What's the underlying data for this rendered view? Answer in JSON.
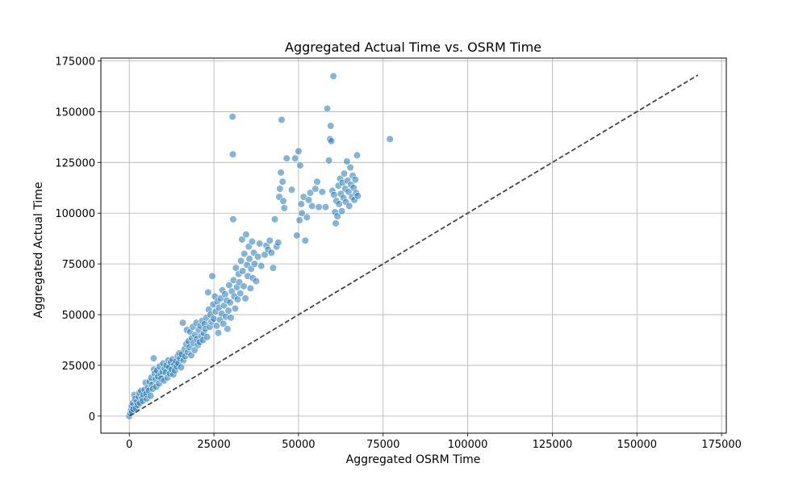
{
  "chart_data": {
    "type": "scatter",
    "title": "Aggregated Actual Time vs. OSRM Time",
    "xlabel": "Aggregated OSRM Time",
    "ylabel": "Aggregated Actual Time",
    "xlim": [
      -8400,
      176400
    ],
    "ylim": [
      -8400,
      176400
    ],
    "xticks": [
      0,
      25000,
      50000,
      75000,
      100000,
      125000,
      150000,
      175000
    ],
    "yticks": [
      0,
      25000,
      50000,
      75000,
      100000,
      125000,
      150000,
      175000
    ],
    "xtick_labels": [
      "0",
      "25000",
      "50000",
      "75000",
      "100000",
      "125000",
      "150000",
      "175000"
    ],
    "ytick_labels": [
      "0",
      "25000",
      "50000",
      "75000",
      "100000",
      "125000",
      "150000",
      "175000"
    ],
    "grid": true,
    "point_color": "#1f77b4",
    "reference_line": {
      "style": "dashed",
      "color": "#444444",
      "x": [
        0,
        168000
      ],
      "y": [
        0,
        168000
      ]
    },
    "points": [
      [
        0,
        0
      ],
      [
        300,
        1500
      ],
      [
        500,
        3000
      ],
      [
        700,
        5000
      ],
      [
        800,
        2000
      ],
      [
        1000,
        6500
      ],
      [
        1200,
        3500
      ],
      [
        1500,
        10500
      ],
      [
        1700,
        8500
      ],
      [
        2000,
        4000
      ],
      [
        2200,
        7000
      ],
      [
        2500,
        5500
      ],
      [
        2800,
        9500
      ],
      [
        3000,
        11500
      ],
      [
        3200,
        6500
      ],
      [
        3500,
        12500
      ],
      [
        3800,
        9000
      ],
      [
        4000,
        7500
      ],
      [
        4200,
        10500
      ],
      [
        4500,
        13000
      ],
      [
        4800,
        16500
      ],
      [
        5000,
        11000
      ],
      [
        5200,
        8500
      ],
      [
        5500,
        14000
      ],
      [
        5800,
        12500
      ],
      [
        6000,
        17000
      ],
      [
        6300,
        10000
      ],
      [
        6500,
        19000
      ],
      [
        6800,
        15500
      ],
      [
        7000,
        13500
      ],
      [
        7200,
        28500
      ],
      [
        7300,
        23000
      ],
      [
        7500,
        21000
      ],
      [
        7800,
        18000
      ],
      [
        8000,
        14500
      ],
      [
        8200,
        22500
      ],
      [
        8500,
        19500
      ],
      [
        8800,
        16000
      ],
      [
        9000,
        24500
      ],
      [
        9300,
        20500
      ],
      [
        9500,
        18500
      ],
      [
        9800,
        22000
      ],
      [
        10000,
        26000
      ],
      [
        10300,
        17500
      ],
      [
        10500,
        23500
      ],
      [
        10800,
        21500
      ],
      [
        11000,
        25000
      ],
      [
        11300,
        19000
      ],
      [
        11500,
        27500
      ],
      [
        11800,
        24000
      ],
      [
        12000,
        21000
      ],
      [
        12300,
        26500
      ],
      [
        12500,
        23000
      ],
      [
        12800,
        28000
      ],
      [
        13000,
        20500
      ],
      [
        13300,
        25500
      ],
      [
        13500,
        22500
      ],
      [
        13800,
        27000
      ],
      [
        14000,
        24500
      ],
      [
        14300,
        29500
      ],
      [
        14500,
        26000
      ],
      [
        14800,
        31000
      ],
      [
        15000,
        28500
      ],
      [
        15300,
        24000
      ],
      [
        15500,
        30500
      ],
      [
        15800,
        46000
      ],
      [
        16000,
        27500
      ],
      [
        16300,
        33000
      ],
      [
        16500,
        29500
      ],
      [
        16800,
        35500
      ],
      [
        17000,
        42500
      ],
      [
        17300,
        31500
      ],
      [
        17500,
        37000
      ],
      [
        17800,
        34000
      ],
      [
        18000,
        41500
      ],
      [
        18300,
        30000
      ],
      [
        18500,
        38500
      ],
      [
        18800,
        44000
      ],
      [
        19000,
        36000
      ],
      [
        19300,
        32500
      ],
      [
        19500,
        40000
      ],
      [
        19800,
        46000
      ],
      [
        20000,
        38000
      ],
      [
        20300,
        35000
      ],
      [
        20500,
        42500
      ],
      [
        20800,
        36500
      ],
      [
        21000,
        44500
      ],
      [
        21300,
        39500
      ],
      [
        21500,
        47000
      ],
      [
        21800,
        37500
      ],
      [
        22000,
        41000
      ],
      [
        22300,
        45500
      ],
      [
        22500,
        43000
      ],
      [
        22800,
        48500
      ],
      [
        23000,
        39000
      ],
      [
        23300,
        61000
      ],
      [
        23500,
        52500
      ],
      [
        23800,
        44000
      ],
      [
        24000,
        50000
      ],
      [
        24300,
        46500
      ],
      [
        24500,
        69000
      ],
      [
        24800,
        55000
      ],
      [
        25000,
        48000
      ],
      [
        25300,
        59000
      ],
      [
        25500,
        51500
      ],
      [
        25800,
        44500
      ],
      [
        26000,
        56500
      ],
      [
        26300,
        41000
      ],
      [
        26500,
        53500
      ],
      [
        26800,
        47500
      ],
      [
        27000,
        58000
      ],
      [
        27300,
        50500
      ],
      [
        27500,
        62000
      ],
      [
        27800,
        45500
      ],
      [
        28000,
        54500
      ],
      [
        28300,
        60000
      ],
      [
        28500,
        49000
      ],
      [
        28800,
        57000
      ],
      [
        29000,
        43000
      ],
      [
        29300,
        52000
      ],
      [
        29500,
        64500
      ],
      [
        29800,
        56000
      ],
      [
        30000,
        48500
      ],
      [
        30300,
        61500
      ],
      [
        30500,
        147500
      ],
      [
        30600,
        129000
      ],
      [
        30700,
        97000
      ],
      [
        30800,
        67000
      ],
      [
        31000,
        59000
      ],
      [
        31300,
        53000
      ],
      [
        31500,
        73000
      ],
      [
        31800,
        63500
      ],
      [
        32000,
        57500
      ],
      [
        32300,
        70000
      ],
      [
        32500,
        66000
      ],
      [
        32800,
        60500
      ],
      [
        33000,
        76500
      ],
      [
        33300,
        87000
      ],
      [
        33500,
        71500
      ],
      [
        33800,
        64000
      ],
      [
        34000,
        80000
      ],
      [
        34300,
        58000
      ],
      [
        34500,
        89500
      ],
      [
        34800,
        74500
      ],
      [
        35000,
        69000
      ],
      [
        35300,
        83500
      ],
      [
        35500,
        77500
      ],
      [
        35800,
        63000
      ],
      [
        36000,
        72500
      ],
      [
        36300,
        86000
      ],
      [
        36500,
        68000
      ],
      [
        36800,
        80500
      ],
      [
        37000,
        75000
      ],
      [
        37500,
        66500
      ],
      [
        38000,
        78500
      ],
      [
        38500,
        85000
      ],
      [
        39000,
        74000
      ],
      [
        40000,
        79500
      ],
      [
        40500,
        84000
      ],
      [
        41000,
        82000
      ],
      [
        41500,
        86500
      ],
      [
        42000,
        80500
      ],
      [
        42500,
        73000
      ],
      [
        43000,
        97000
      ],
      [
        43500,
        83500
      ],
      [
        44000,
        85500
      ],
      [
        44300,
        108000
      ],
      [
        44500,
        112000
      ],
      [
        44800,
        120000
      ],
      [
        45000,
        146000
      ],
      [
        45300,
        115500
      ],
      [
        45500,
        106000
      ],
      [
        45800,
        102500
      ],
      [
        46500,
        127000
      ],
      [
        48000,
        111500
      ],
      [
        49000,
        127000
      ],
      [
        49500,
        89000
      ],
      [
        50000,
        130500
      ],
      [
        50300,
        96500
      ],
      [
        50500,
        123500
      ],
      [
        50800,
        104500
      ],
      [
        51000,
        100000
      ],
      [
        51500,
        108000
      ],
      [
        52000,
        86500
      ],
      [
        52500,
        98000
      ],
      [
        53000,
        106500
      ],
      [
        53500,
        110000
      ],
      [
        54000,
        103500
      ],
      [
        55000,
        112000
      ],
      [
        55500,
        115500
      ],
      [
        56000,
        103000
      ],
      [
        57000,
        110500
      ],
      [
        58000,
        103000
      ],
      [
        58500,
        151500
      ],
      [
        59000,
        126000
      ],
      [
        59300,
        136500
      ],
      [
        59500,
        143000
      ],
      [
        59700,
        135500
      ],
      [
        60000,
        111000
      ],
      [
        60300,
        167500
      ],
      [
        60500,
        109000
      ],
      [
        60800,
        100500
      ],
      [
        61000,
        95000
      ],
      [
        61200,
        106000
      ],
      [
        61500,
        98500
      ],
      [
        61800,
        113500
      ],
      [
        62000,
        104500
      ],
      [
        62300,
        117000
      ],
      [
        62500,
        109500
      ],
      [
        62800,
        101000
      ],
      [
        63000,
        115000
      ],
      [
        63300,
        107500
      ],
      [
        63500,
        119500
      ],
      [
        63800,
        112000
      ],
      [
        64000,
        105500
      ],
      [
        64300,
        125500
      ],
      [
        64500,
        116000
      ],
      [
        64800,
        110500
      ],
      [
        65000,
        103500
      ],
      [
        65300,
        122500
      ],
      [
        65500,
        114000
      ],
      [
        65800,
        108000
      ],
      [
        66000,
        118500
      ],
      [
        66300,
        112500
      ],
      [
        66500,
        106500
      ],
      [
        66800,
        116500
      ],
      [
        67000,
        110000
      ],
      [
        67300,
        128500
      ],
      [
        67500,
        108500
      ],
      [
        77000,
        136500
      ]
    ]
  }
}
